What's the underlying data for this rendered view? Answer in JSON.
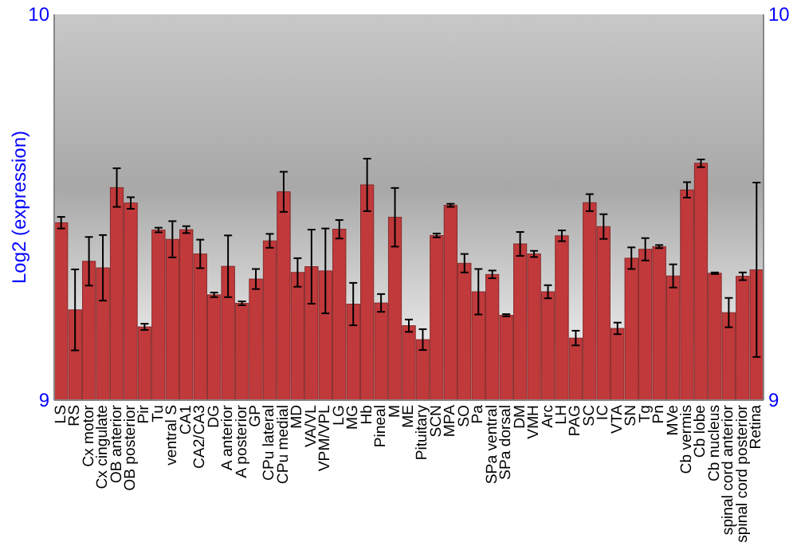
{
  "chart_data": {
    "type": "bar",
    "ylabel": "Log2 (expression)",
    "categories": [
      "LS",
      "RS",
      "Cx motor",
      "Cx cingulate",
      "OB anterior",
      "OB posterior",
      "Pir",
      "Tu",
      "ventral S",
      "CA1",
      "CA2/CA3",
      "DG",
      "A anterior",
      "A posterior",
      "GP",
      "CPu lateral",
      "CPu medial",
      "MD",
      "VA/VL",
      "VPM/VPL",
      "LG",
      "MG",
      "Hb",
      "Pineal",
      "M",
      "ME",
      "Pituitary",
      "SCN",
      "MPA",
      "SO",
      "Pa",
      "SPa ventral",
      "SPa dorsal",
      "DM",
      "VMH",
      "Arc",
      "LH",
      "PAG",
      "SC",
      "IC",
      "VTA",
      "SN",
      "Tg",
      "Pn",
      "MVe",
      "Cb vermis",
      "Cb lobe",
      "Cb nucleus",
      "spinal cord anterior",
      "spinal cord posterior",
      "Retina"
    ],
    "values": [
      9.46,
      9.234,
      9.36,
      9.343,
      9.551,
      9.511,
      9.19,
      9.441,
      9.417,
      9.442,
      9.379,
      9.273,
      9.347,
      9.251,
      9.314,
      9.413,
      9.54,
      9.331,
      9.346,
      9.335,
      9.443,
      9.249,
      9.558,
      9.252,
      9.474,
      9.193,
      9.157,
      9.427,
      9.505,
      9.355,
      9.281,
      9.326,
      9.22,
      9.405,
      9.379,
      9.281,
      9.426,
      9.161,
      9.512,
      9.45,
      9.186,
      9.368,
      9.391,
      9.398,
      9.322,
      9.545,
      9.614,
      9.329,
      9.227,
      9.321,
      9.338
    ],
    "errors": [
      0.015,
      0.105,
      0.063,
      0.085,
      0.05,
      0.015,
      0.008,
      0.006,
      0.047,
      0.009,
      0.037,
      0.006,
      0.08,
      0.005,
      0.026,
      0.018,
      0.052,
      0.037,
      0.096,
      0.11,
      0.024,
      0.055,
      0.068,
      0.023,
      0.076,
      0.016,
      0.027,
      0.005,
      0.004,
      0.024,
      0.059,
      0.01,
      0.003,
      0.031,
      0.008,
      0.017,
      0.014,
      0.019,
      0.022,
      0.032,
      0.015,
      0.028,
      0.029,
      0.004,
      0.03,
      0.02,
      0.01,
      0.002,
      0.038,
      0.01,
      0.226
    ],
    "color": "#c0393b",
    "ylim": [
      9,
      10
    ],
    "yticks": [
      9,
      10
    ],
    "y2lim": [
      9,
      10
    ],
    "y2ticks": [
      9,
      10
    ],
    "grid": false
  }
}
